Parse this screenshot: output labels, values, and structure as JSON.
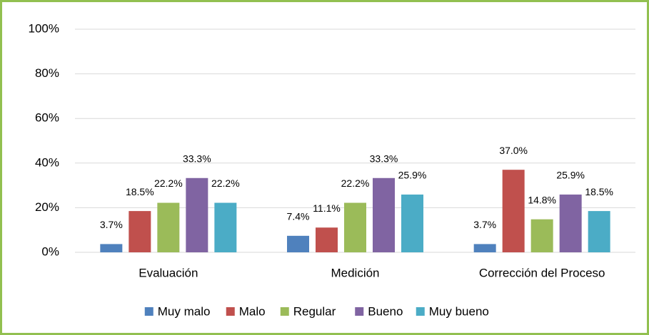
{
  "chart_data": {
    "type": "bar",
    "categories": [
      "Evaluación",
      "Medición",
      "Corrección del Proceso"
    ],
    "series": [
      {
        "name": "Muy malo",
        "color": "#4f81bd",
        "values": [
          3.7,
          7.4,
          3.7
        ],
        "value_labels": [
          "3.7%",
          "7.4%",
          "3.7%"
        ]
      },
      {
        "name": "Malo",
        "color": "#c0504d",
        "values": [
          18.5,
          11.1,
          37.0
        ],
        "value_labels": [
          "18.5%",
          "11.1%",
          "37.0%"
        ]
      },
      {
        "name": "Regular",
        "color": "#9bbb59",
        "values": [
          22.2,
          22.2,
          14.8
        ],
        "value_labels": [
          "22.2%",
          "22.2%",
          "14.8%"
        ]
      },
      {
        "name": "Bueno",
        "color": "#8064a2",
        "values": [
          33.3,
          33.3,
          25.9
        ],
        "value_labels": [
          "33.3%",
          "33.3%",
          "25.9%"
        ]
      },
      {
        "name": "Muy bueno",
        "color": "#4bacc6",
        "values": [
          22.2,
          25.9,
          18.5
        ],
        "value_labels": [
          "22.2%",
          "25.9%",
          "18.5%"
        ]
      }
    ],
    "ylim": [
      0,
      100
    ],
    "yticks": [
      {
        "value": 0,
        "label": "0%"
      },
      {
        "value": 20,
        "label": "20%"
      },
      {
        "value": 40,
        "label": "40%"
      },
      {
        "value": 60,
        "label": "60%"
      },
      {
        "value": 80,
        "label": "80%"
      },
      {
        "value": 100,
        "label": "100%"
      }
    ],
    "grid": true,
    "legend": "bottom"
  }
}
